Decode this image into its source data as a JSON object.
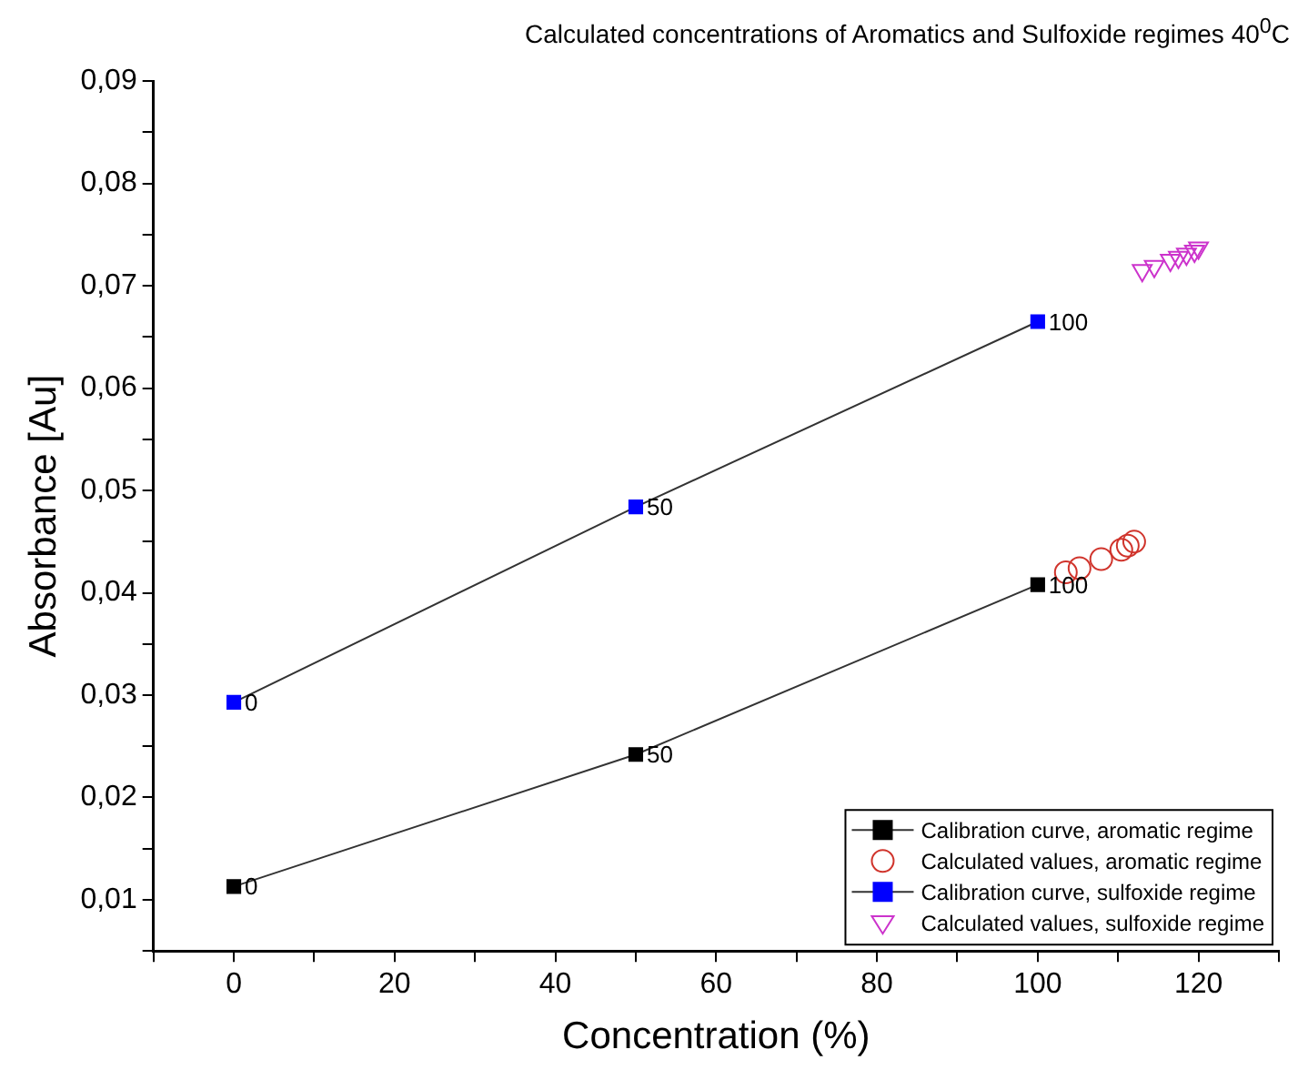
{
  "chart_data": {
    "type": "line",
    "title": "Calculated concentrations of Aromatics and Sulfoxide regimes 40$^{0}$C",
    "xlabel": "Concentration (%)",
    "ylabel": "Absorbance [Au]",
    "xlim": [
      -10,
      130
    ],
    "xticks": [
      {
        "value": -10,
        "label": null
      },
      0,
      {
        "value": 10,
        "label": null
      },
      20,
      {
        "value": 30,
        "label": null
      },
      40,
      {
        "value": 50,
        "label": null
      },
      60,
      {
        "value": 70,
        "label": null
      },
      80,
      {
        "value": 90,
        "label": null
      },
      100,
      {
        "value": 110,
        "label": null
      },
      120,
      {
        "value": 130,
        "label": null
      }
    ],
    "ylim": [
      0.005,
      0.09
    ],
    "yticks": [
      {
        "value": 0.005,
        "label": null
      },
      {
        "value": 0.01,
        "label": "0,01"
      },
      {
        "value": 0.015,
        "label": null
      },
      {
        "value": 0.02,
        "label": "0,02"
      },
      {
        "value": 0.025,
        "label": null
      },
      {
        "value": 0.03,
        "label": "0,03"
      },
      {
        "value": 0.035,
        "label": null
      },
      {
        "value": 0.04,
        "label": "0,04"
      },
      {
        "value": 0.045,
        "label": null
      },
      {
        "value": 0.05,
        "label": "0,05"
      },
      {
        "value": 0.055,
        "label": null
      },
      {
        "value": 0.06,
        "label": "0,06"
      },
      {
        "value": 0.065,
        "label": null
      },
      {
        "value": 0.07,
        "label": "0,07"
      },
      {
        "value": 0.075,
        "label": null
      },
      {
        "value": 0.08,
        "label": "0,08"
      },
      {
        "value": 0.085,
        "label": null
      },
      {
        "value": 0.09,
        "label": "0,09"
      }
    ],
    "grid": false,
    "legend": "bottom right",
    "annotations": [
      {
        "text": "0",
        "x": 0,
        "y": 0.0113
      },
      {
        "text": "50",
        "x": 50,
        "y": 0.0242
      },
      {
        "text": "100",
        "x": 100,
        "y": 0.0408
      },
      {
        "text": "0",
        "x": 0,
        "y": 0.0293
      },
      {
        "text": "50",
        "x": 50,
        "y": 0.0484
      },
      {
        "text": "100",
        "x": 100,
        "y": 0.0665
      }
    ],
    "series": [
      {
        "name": "Calibration curve, aromatic regime",
        "type": "line",
        "marker": "square",
        "line_style": "solid",
        "color": "#000000",
        "x": [
          0,
          50,
          100
        ],
        "values": [
          0.0113,
          0.0242,
          0.0408
        ]
      },
      {
        "name": "Calculated values, aromatic regime",
        "type": "scatter",
        "marker": "circle",
        "color": "#d0342c",
        "x": [
          103.5,
          105.2,
          107.9,
          110.4,
          111.2,
          112
        ],
        "values": [
          0.042,
          0.0424,
          0.0433,
          0.0442,
          0.0446,
          0.045
        ]
      },
      {
        "name": "Calibration curve, sulfoxide regime",
        "type": "line",
        "marker": "square",
        "line_style": "solid",
        "color": "#0000ff",
        "x": [
          0,
          50,
          100
        ],
        "values": [
          0.0293,
          0.0484,
          0.0665
        ]
      },
      {
        "name": "Calculated values, sulfoxide regime",
        "type": "scatter",
        "marker": "triangle",
        "color": "#cc33cc",
        "x": [
          113,
          114.5,
          116.5,
          117.5,
          118.5,
          119.5,
          120
        ],
        "values": [
          0.0715,
          0.0719,
          0.0725,
          0.0728,
          0.0731,
          0.0734,
          0.0737
        ]
      }
    ]
  }
}
